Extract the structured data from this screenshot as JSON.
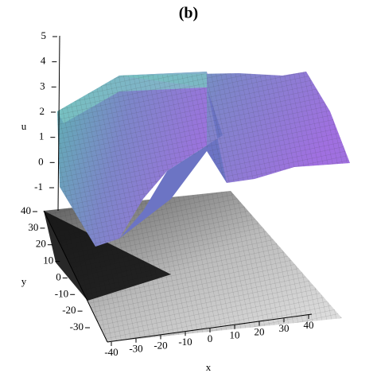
{
  "chart_data": {
    "type": "surface3d",
    "title": "(b)",
    "zlabel": "u",
    "ylabel": "y",
    "xlabel": "x",
    "zlim": [
      -1,
      5
    ],
    "zticks": [
      -1,
      0,
      1,
      2,
      3,
      4,
      5
    ],
    "ylim": [
      -30,
      40
    ],
    "yticks": [
      -30,
      -20,
      -10,
      0,
      10,
      20,
      30,
      40
    ],
    "xlim": [
      -40,
      40
    ],
    "xticks": [
      -40,
      -30,
      -20,
      -10,
      0,
      10,
      20,
      30,
      40
    ]
  }
}
